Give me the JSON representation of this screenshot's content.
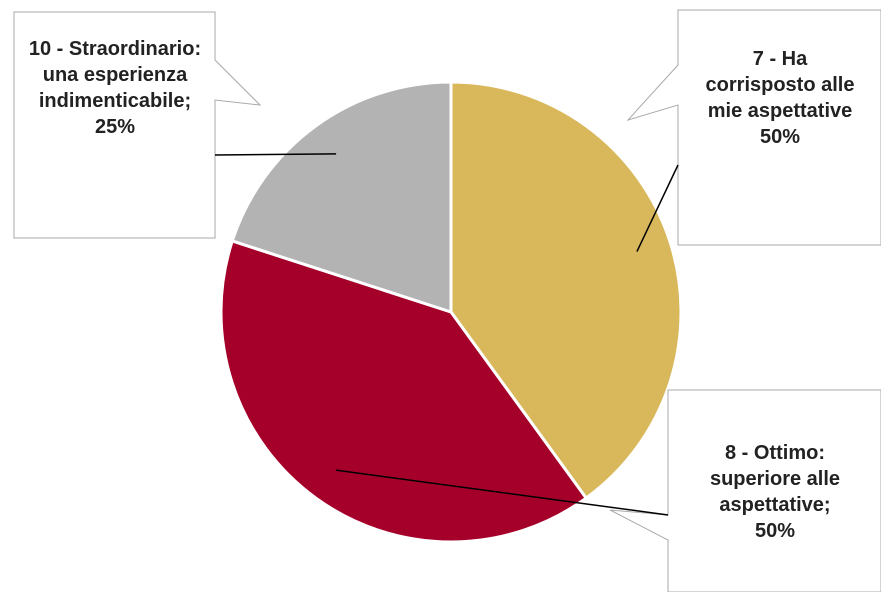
{
  "chart_data": {
    "type": "pie",
    "categories": [
      "7 - Ha corrisposto alle mie aspettative",
      "8 - Ottimo: superiore alle aspettative;",
      "10 - Straordinario: una esperienza indimenticabile;"
    ],
    "values": [
      50,
      50,
      25
    ],
    "value_labels": [
      "50%",
      "50%",
      "25%"
    ],
    "colors": [
      "#d9b85c",
      "#a5002a",
      "#b3b3b3"
    ]
  }
}
